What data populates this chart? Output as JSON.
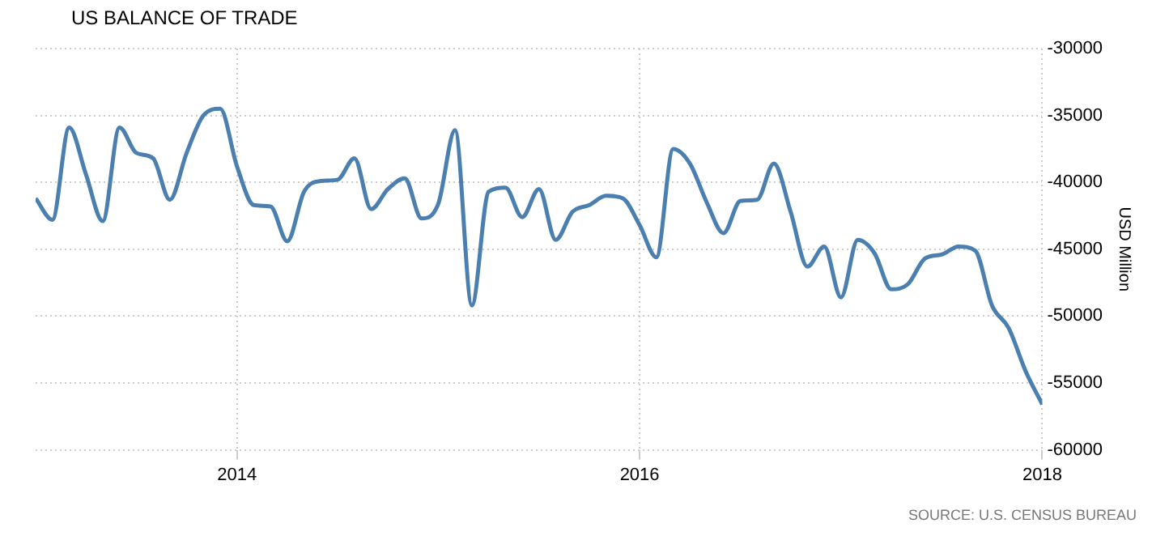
{
  "chart_data": {
    "type": "line",
    "title": "US BALANCE OF TRADE",
    "ylabel": "USD Million",
    "annotations": [
      "SOURCE: U.S. CENSUS BUREAU"
    ],
    "x": [
      "2013-01",
      "2013-02",
      "2013-03",
      "2013-04",
      "2013-05",
      "2013-06",
      "2013-07",
      "2013-08",
      "2013-09",
      "2013-10",
      "2013-11",
      "2013-12",
      "2014-01",
      "2014-02",
      "2014-03",
      "2014-04",
      "2014-05",
      "2014-06",
      "2014-07",
      "2014-08",
      "2014-09",
      "2014-10",
      "2014-11",
      "2014-12",
      "2015-01",
      "2015-02",
      "2015-03",
      "2015-04",
      "2015-05",
      "2015-06",
      "2015-07",
      "2015-08",
      "2015-09",
      "2015-10",
      "2015-11",
      "2015-12",
      "2016-01",
      "2016-02",
      "2016-03",
      "2016-04",
      "2016-05",
      "2016-06",
      "2016-07",
      "2016-08",
      "2016-09",
      "2016-10",
      "2016-11",
      "2016-12",
      "2017-01",
      "2017-02",
      "2017-03",
      "2017-04",
      "2017-05",
      "2017-06",
      "2017-07",
      "2017-08",
      "2017-09",
      "2017-10",
      "2017-11",
      "2017-12",
      "2018-01"
    ],
    "series": [
      {
        "color": "#4a7fb0",
        "values": [
          -41200,
          -42800,
          -35900,
          -39400,
          -42900,
          -35900,
          -37800,
          -38200,
          -41300,
          -37800,
          -35000,
          -34500,
          -38800,
          -41700,
          -41800,
          -44400,
          -40700,
          -39900,
          -39800,
          -38200,
          -42000,
          -40500,
          -39700,
          -42700,
          -41600,
          -36100,
          -49200,
          -40700,
          -40400,
          -42600,
          -40500,
          -44300,
          -42200,
          -41700,
          -41000,
          -41200,
          -43200,
          -45600,
          -37500,
          -38600,
          -41500,
          -43800,
          -41400,
          -41300,
          -38600,
          -42200,
          -46300,
          -44800,
          -48600,
          -44300,
          -45300,
          -48000,
          -47600,
          -45700,
          -45400,
          -44800,
          -45100,
          -49200,
          -50900,
          -54100,
          -56600
        ]
      }
    ],
    "xlim": [
      "2013-01",
      "2018-01"
    ],
    "xticks": [
      "2014",
      "2016",
      "2018"
    ],
    "ylim": [
      -60000,
      -30000
    ],
    "yticks": [
      -60000,
      -55000,
      -50000,
      -45000,
      -40000,
      -35000,
      -30000
    ],
    "grid": true,
    "legend": false,
    "marker": "none",
    "line_style": "solid"
  }
}
